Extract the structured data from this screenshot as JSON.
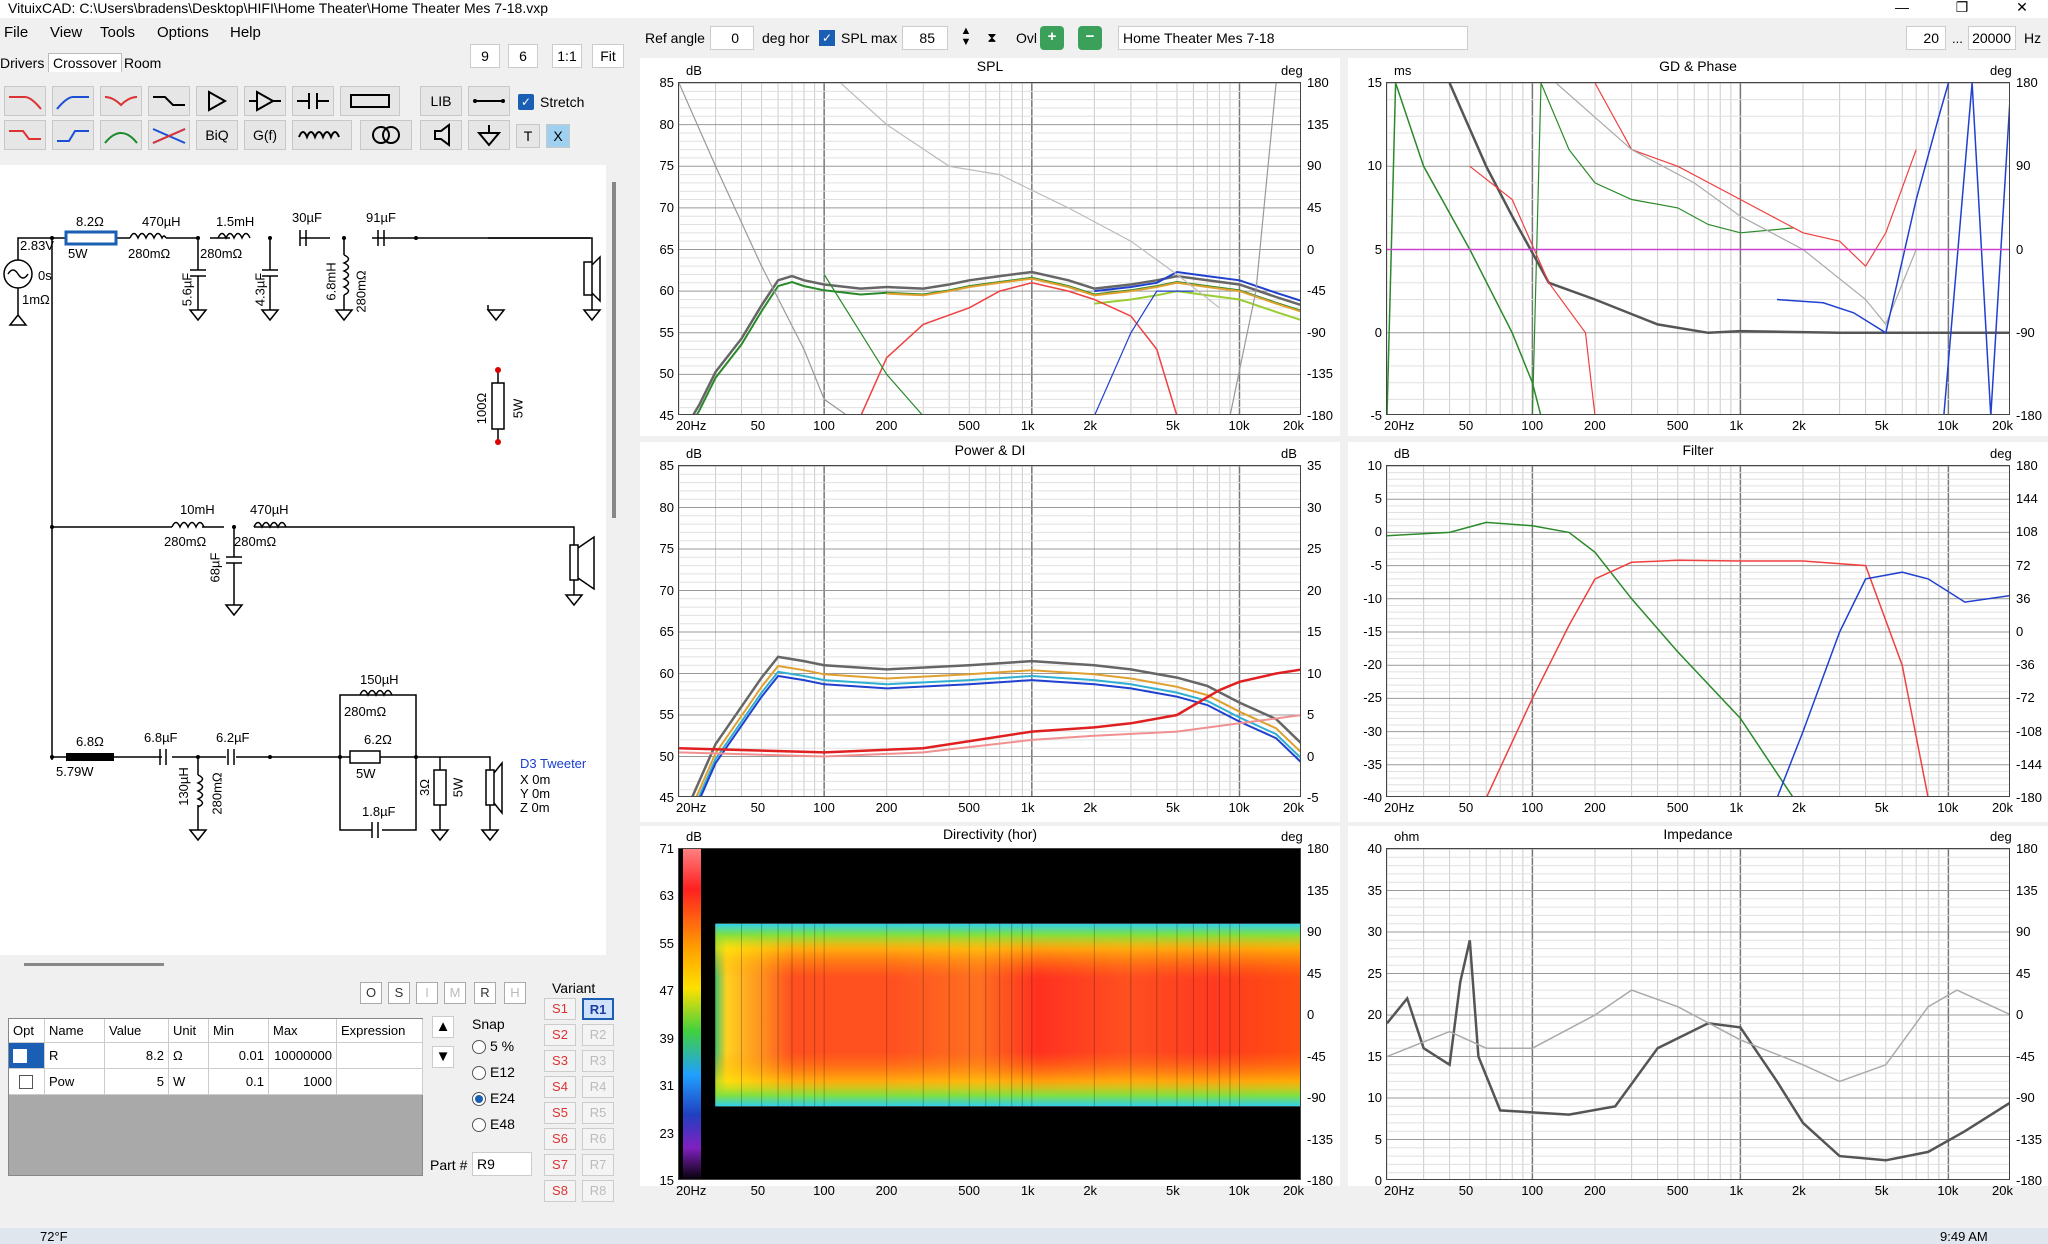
{
  "window": {
    "title": "VituixCAD: C:\\Users\\bradens\\Desktop\\HIFI\\Home Theater\\Home Theater Mes 7-18.vxp",
    "minimize": "—",
    "maximize": "❐",
    "close": "✕"
  },
  "menu": [
    "File",
    "View",
    "Tools",
    "Options",
    "Help"
  ],
  "tabs": [
    "Drivers",
    "Crossover",
    "Room"
  ],
  "zoom_buttons": [
    "9",
    "6",
    "1:1",
    "Fit"
  ],
  "toolbar": {
    "lib": "LIB",
    "biq": "BiQ",
    "gf": "G(f)",
    "stretch": "Stretch",
    "t": "T",
    "x": "X"
  },
  "schematic": {
    "top": [
      "8.2Ω",
      "5W",
      "470µH",
      "280mΩ",
      "1.5mH",
      "280mΩ",
      "30µF",
      "91µF",
      "5.6µF",
      "4.3µF",
      "6.8mH",
      "280mΩ",
      "2.83V",
      "0s",
      "1mΩ",
      "100Ω",
      "5W"
    ],
    "mid": [
      "10mH",
      "280mΩ",
      "470µH",
      "280mΩ",
      "68µF"
    ],
    "bot": [
      "6.8Ω",
      "5.79W",
      "6.8µF",
      "6.2µF",
      "150µH",
      "280mΩ",
      "6.2Ω",
      "5W",
      "1.8µF",
      "130µH",
      "280mΩ",
      "3Ω",
      "5W"
    ],
    "tweeter": {
      "name": "D3 Tweeter",
      "x": "X 0m",
      "y": "Y 0m",
      "z": "Z 0m"
    }
  },
  "opt_buttons": [
    "O",
    "S",
    "I",
    "M",
    "R",
    "H"
  ],
  "part_grid": {
    "headers": [
      "Opt",
      "Name",
      "Value",
      "Unit",
      "Min",
      "Max",
      "Expression"
    ],
    "rows": [
      [
        "",
        "R",
        "8.2",
        "Ω",
        "0.01",
        "10000000",
        ""
      ],
      [
        "",
        "Pow",
        "5",
        "W",
        "0.1",
        "1000",
        ""
      ]
    ]
  },
  "snap": {
    "label": "Snap",
    "options": [
      "5 %",
      "E12",
      "E24",
      "E48"
    ],
    "selected": "E24"
  },
  "part_num": {
    "label": "Part #",
    "value": "R9"
  },
  "variant": {
    "label": "Variant",
    "s": [
      "S1",
      "S2",
      "S3",
      "S4",
      "S5",
      "S6",
      "S7",
      "S8"
    ],
    "r": [
      "R1",
      "R2",
      "R3",
      "R4",
      "R5",
      "R6",
      "R7",
      "R8"
    ],
    "active": "R1"
  },
  "topbar": {
    "ref_angle_label": "Ref angle",
    "ref_angle": "0",
    "deg_hor": "deg hor",
    "spl_max_label": "SPL max",
    "spl_max": "85",
    "ovl": "Ovl",
    "project": "Home Theater Mes 7-18",
    "fmin": "20",
    "dots": "...",
    "fmax": "20000",
    "hz": "Hz"
  },
  "panels": {
    "spl": {
      "title": "SPL",
      "lunit": "dB",
      "runit": "deg",
      "ly": [
        "85",
        "80",
        "75",
        "70",
        "65",
        "60",
        "55",
        "50",
        "45"
      ],
      "ry": [
        "180",
        "135",
        "90",
        "45",
        "0",
        "-45",
        "-90",
        "-135",
        "-180"
      ]
    },
    "gd": {
      "title": "GD & Phase",
      "lunit": "ms",
      "runit": "deg",
      "ly": [
        "15",
        "10",
        "5",
        "0",
        "-5"
      ],
      "ry": [
        "180",
        "90",
        "0",
        "-90",
        "-180"
      ]
    },
    "power": {
      "title": "Power & DI",
      "lunit": "dB",
      "runit": "dB",
      "ly": [
        "85",
        "80",
        "75",
        "70",
        "65",
        "60",
        "55",
        "50",
        "45"
      ],
      "ry": [
        "35",
        "30",
        "25",
        "20",
        "15",
        "10",
        "5",
        "0",
        "-5"
      ]
    },
    "filter": {
      "title": "Filter",
      "lunit": "dB",
      "runit": "deg",
      "ly": [
        "10",
        "5",
        "0",
        "-5",
        "-10",
        "-15",
        "-20",
        "-25",
        "-30",
        "-35",
        "-40"
      ],
      "ry": [
        "180",
        "144",
        "108",
        "72",
        "36",
        "0",
        "-36",
        "-72",
        "-108",
        "-144",
        "-180"
      ]
    },
    "dir": {
      "title": "Directivity (hor)",
      "lunit": "dB",
      "runit": "deg",
      "ly": [
        "71",
        "63",
        "55",
        "47",
        "39",
        "31",
        "23",
        "15"
      ],
      "ry": [
        "180",
        "135",
        "90",
        "45",
        "0",
        "-45",
        "-90",
        "-135",
        "-180"
      ]
    },
    "imp": {
      "title": "Impedance",
      "lunit": "ohm",
      "runit": "deg",
      "ly": [
        "40",
        "35",
        "30",
        "25",
        "20",
        "15",
        "10",
        "5",
        "0"
      ],
      "ry": [
        "180",
        "135",
        "90",
        "45",
        "0",
        "-45",
        "-90",
        "-135",
        "-180"
      ]
    }
  },
  "xlabels": [
    "20Hz",
    "50",
    "100",
    "200",
    "500",
    "1k",
    "2k",
    "5k",
    "10k",
    "20k"
  ],
  "taskbar": {
    "weather": "72°F",
    "time": "9:49 AM"
  }
}
